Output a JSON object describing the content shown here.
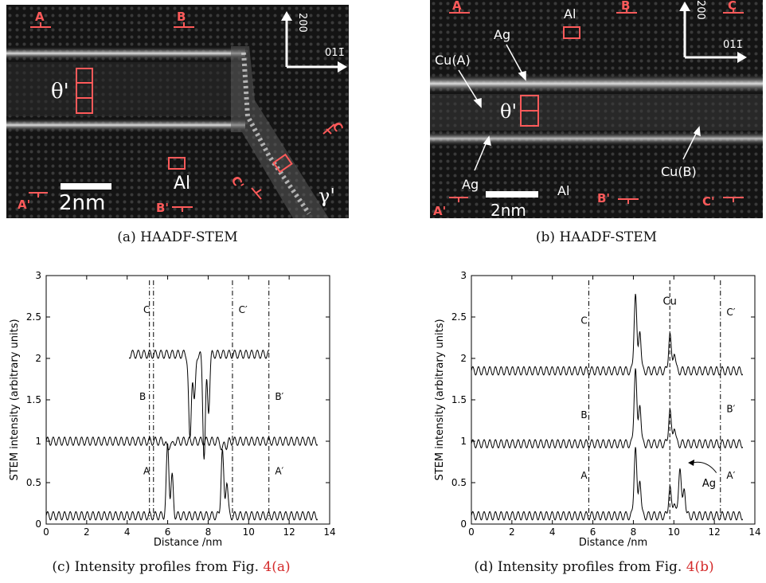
{
  "panel_a": {
    "markers": {
      "A": "A",
      "B": "B",
      "C": "C",
      "A_prime": "A'",
      "B_prime": "B'",
      "C_prime": "C'"
    },
    "direction_vertical": "200",
    "direction_horizontal": "011̄",
    "phase_theta": "θ'",
    "phase_gamma": "γ'",
    "matrix_label": "Al",
    "scale_bar": "2nm",
    "caption": "(a) HAADF-STEM"
  },
  "panel_b": {
    "markers": {
      "A": "A",
      "B": "B",
      "C": "C",
      "A_prime": "A'",
      "B_prime": "B'",
      "C_prime": "C'"
    },
    "direction_vertical": "200",
    "direction_horizontal": "011̄",
    "phase_theta": "θ'",
    "label_al_top": "Al",
    "label_al_bottom": "Al",
    "label_ag_top": "Ag",
    "label_ag_bottom": "Ag",
    "label_cu_a": "Cu(A)",
    "label_cu_b": "Cu(B)",
    "scale_bar": "2nm",
    "caption": "(b) HAADF-STEM"
  },
  "caption_c": {
    "text": "(c) Intensity profiles from Fig. ",
    "ref": "4(a)"
  },
  "caption_d": {
    "text": "(d) Intensity profiles from Fig. ",
    "ref": "4(b)"
  },
  "chart_data": [
    {
      "type": "line",
      "xlabel": "Distance /nm",
      "ylabel": "STEM intensity (arbitrary units)",
      "xlim": [
        0,
        14
      ],
      "ylim": [
        0,
        3
      ],
      "xticks": [
        0,
        2,
        4,
        6,
        8,
        10,
        12,
        14
      ],
      "yticks": [
        0,
        0.5,
        1,
        1.5,
        2,
        2.5,
        3
      ],
      "grid": false,
      "series": [
        {
          "label": "A",
          "x_range": [
            0,
            13.4
          ],
          "baseline": 0.1,
          "peaks": [
            [
              6.0,
              0.95
            ],
            [
              8.7,
              0.88
            ]
          ]
        },
        {
          "label": "B",
          "x_range": [
            0,
            13.4
          ],
          "baseline": 1.0,
          "peaks": [
            [
              6.0,
              0.9
            ],
            [
              8.7,
              0.9
            ]
          ]
        },
        {
          "label": "C",
          "x_range": [
            4.1,
            11.0
          ],
          "baseline": 2.05,
          "peaks": [
            [
              7.1,
              1.0
            ],
            [
              7.8,
              0.82
            ]
          ]
        }
      ],
      "reference_lines": [
        {
          "x": 5.1,
          "labels": [
            "A",
            "B"
          ]
        },
        {
          "x": 11.0,
          "labels": [
            "A′",
            "B′"
          ]
        },
        {
          "x": 5.3,
          "labels": [
            "C"
          ]
        },
        {
          "x": 9.2,
          "labels": [
            "C′"
          ]
        }
      ]
    },
    {
      "type": "line",
      "xlabel": "Distance /nm",
      "ylabel": "STEM intensity (arbitrary units)",
      "xlim": [
        0,
        14
      ],
      "ylim": [
        0,
        3
      ],
      "xticks": [
        0,
        2,
        4,
        6,
        8,
        10,
        12,
        14
      ],
      "yticks": [
        0,
        0.5,
        1,
        1.5,
        2,
        2.5,
        3
      ],
      "grid": false,
      "series": [
        {
          "label": "A",
          "x_range": [
            0,
            13.4
          ],
          "baseline": 0.1,
          "peaks": [
            [
              8.1,
              0.95
            ],
            [
              9.8,
              0.45
            ],
            [
              10.3,
              0.72
            ]
          ]
        },
        {
          "label": "B",
          "x_range": [
            0,
            13.4
          ],
          "baseline": 0.97,
          "peaks": [
            [
              8.1,
              1.9
            ],
            [
              9.8,
              1.38
            ]
          ]
        },
        {
          "label": "C",
          "x_range": [
            0,
            13.4
          ],
          "baseline": 1.85,
          "peaks": [
            [
              8.1,
              2.8
            ],
            [
              9.8,
              2.3
            ]
          ]
        }
      ],
      "reference_lines": [
        {
          "x": 5.8,
          "style": "dash-dot",
          "labels": [
            "A",
            "B",
            "C"
          ]
        },
        {
          "x": 9.8,
          "style": "dashed",
          "labels": [
            "Cu"
          ]
        },
        {
          "x": 12.3,
          "style": "dash-dot",
          "labels": [
            "A′",
            "B′",
            "C′"
          ]
        }
      ],
      "annotations": [
        {
          "text": "Ag",
          "at_x": 10.4,
          "at_y": 0.72
        }
      ]
    }
  ]
}
